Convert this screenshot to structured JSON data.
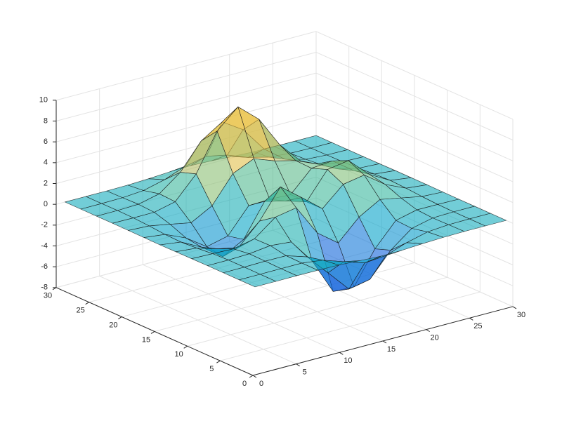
{
  "chart_data": {
    "type": "surface",
    "x": [
      1,
      3.42,
      5.83,
      8.25,
      10.67,
      13.08,
      15.5,
      17.92,
      20.33,
      22.75,
      25.17,
      27.58,
      30
    ],
    "y": [
      1,
      3.42,
      5.83,
      8.25,
      10.67,
      13.08,
      15.5,
      17.92,
      20.33,
      22.75,
      25.17,
      27.58,
      30
    ],
    "z": [
      [
        0,
        0,
        0.01,
        0,
        -0.03,
        -0.14,
        -0.25,
        -0.22,
        -0.11,
        -0.03,
        0,
        0,
        0
      ],
      [
        0,
        0,
        0.01,
        0.01,
        -0.24,
        -0.92,
        -1.57,
        -1.4,
        -0.69,
        -0.19,
        -0.03,
        0,
        0
      ],
      [
        0,
        0.01,
        0.05,
        0.04,
        -0.6,
        -2.66,
        -4.76,
        -4.36,
        -2.09,
        -0.53,
        -0.06,
        0,
        0
      ],
      [
        0,
        0.01,
        0.08,
        0.33,
        0.15,
        -2.2,
        -5.67,
        -5.76,
        -2.64,
        -0.44,
        0.04,
        0.03,
        0
      ],
      [
        -0.01,
        -0.06,
        -0.13,
        0.3,
        1.85,
        2.22,
        -0.73,
        -2.22,
        -0.27,
        0.89,
        0.5,
        0.11,
        0.01
      ],
      [
        -0.02,
        -0.2,
        -0.8,
        -1.21,
        0.8,
        3.55,
        2.0,
        0.39,
        2.2,
        2.56,
        1.12,
        0.23,
        0.03
      ],
      [
        -0.04,
        -0.3,
        -1.33,
        -2.77,
        -1.65,
        1.48,
        0.98,
        0.37,
        2.94,
        3.27,
        1.41,
        0.3,
        0.03
      ],
      [
        -0.02,
        -0.25,
        -1.12,
        -2.49,
        -2.0,
        0.39,
        0.46,
        0.38,
        2.38,
        2.56,
        1.1,
        0.23,
        0.03
      ],
      [
        -0.01,
        -0.11,
        -0.48,
        -0.87,
        0.23,
        2.79,
        3.69,
        2.94,
        2.44,
        1.58,
        0.58,
        0.11,
        0.01
      ],
      [
        0,
        -0.02,
        -0.01,
        0.47,
        2.61,
        6.19,
        7.99,
        6.26,
        3.26,
        1.18,
        0.29,
        0.05,
        0
      ],
      [
        0,
        0.01,
        0.08,
        0.55,
        2.08,
        4.57,
        5.86,
        4.58,
        2.2,
        0.68,
        0.13,
        0.02,
        0
      ],
      [
        0,
        0,
        0.03,
        0.19,
        0.69,
        1.46,
        1.88,
        1.47,
        0.7,
        0.2,
        0.04,
        0,
        0
      ],
      [
        0,
        0,
        0,
        0.03,
        0.11,
        0.23,
        0.3,
        0.23,
        0.11,
        0.03,
        0,
        0,
        0
      ]
    ],
    "xlim": [
      0,
      30
    ],
    "xticks": [
      0,
      5,
      10,
      15,
      20,
      25,
      30
    ],
    "ylim": [
      0,
      30
    ],
    "yticks": [
      0,
      5,
      10,
      15,
      20,
      25,
      30
    ],
    "zlim": [
      -8,
      10
    ],
    "zticks": [
      -8,
      -6,
      -4,
      -2,
      0,
      2,
      4,
      6,
      8,
      10
    ],
    "grid": true,
    "colormap": [
      "#352a87",
      "#0f5cdd",
      "#1481d6",
      "#06a4ca",
      "#2eb7a4",
      "#87bf77",
      "#d1bb59",
      "#fec832",
      "#f9fb0e"
    ],
    "face_alpha": 0.6,
    "edge_color": "#1a1a1a"
  }
}
